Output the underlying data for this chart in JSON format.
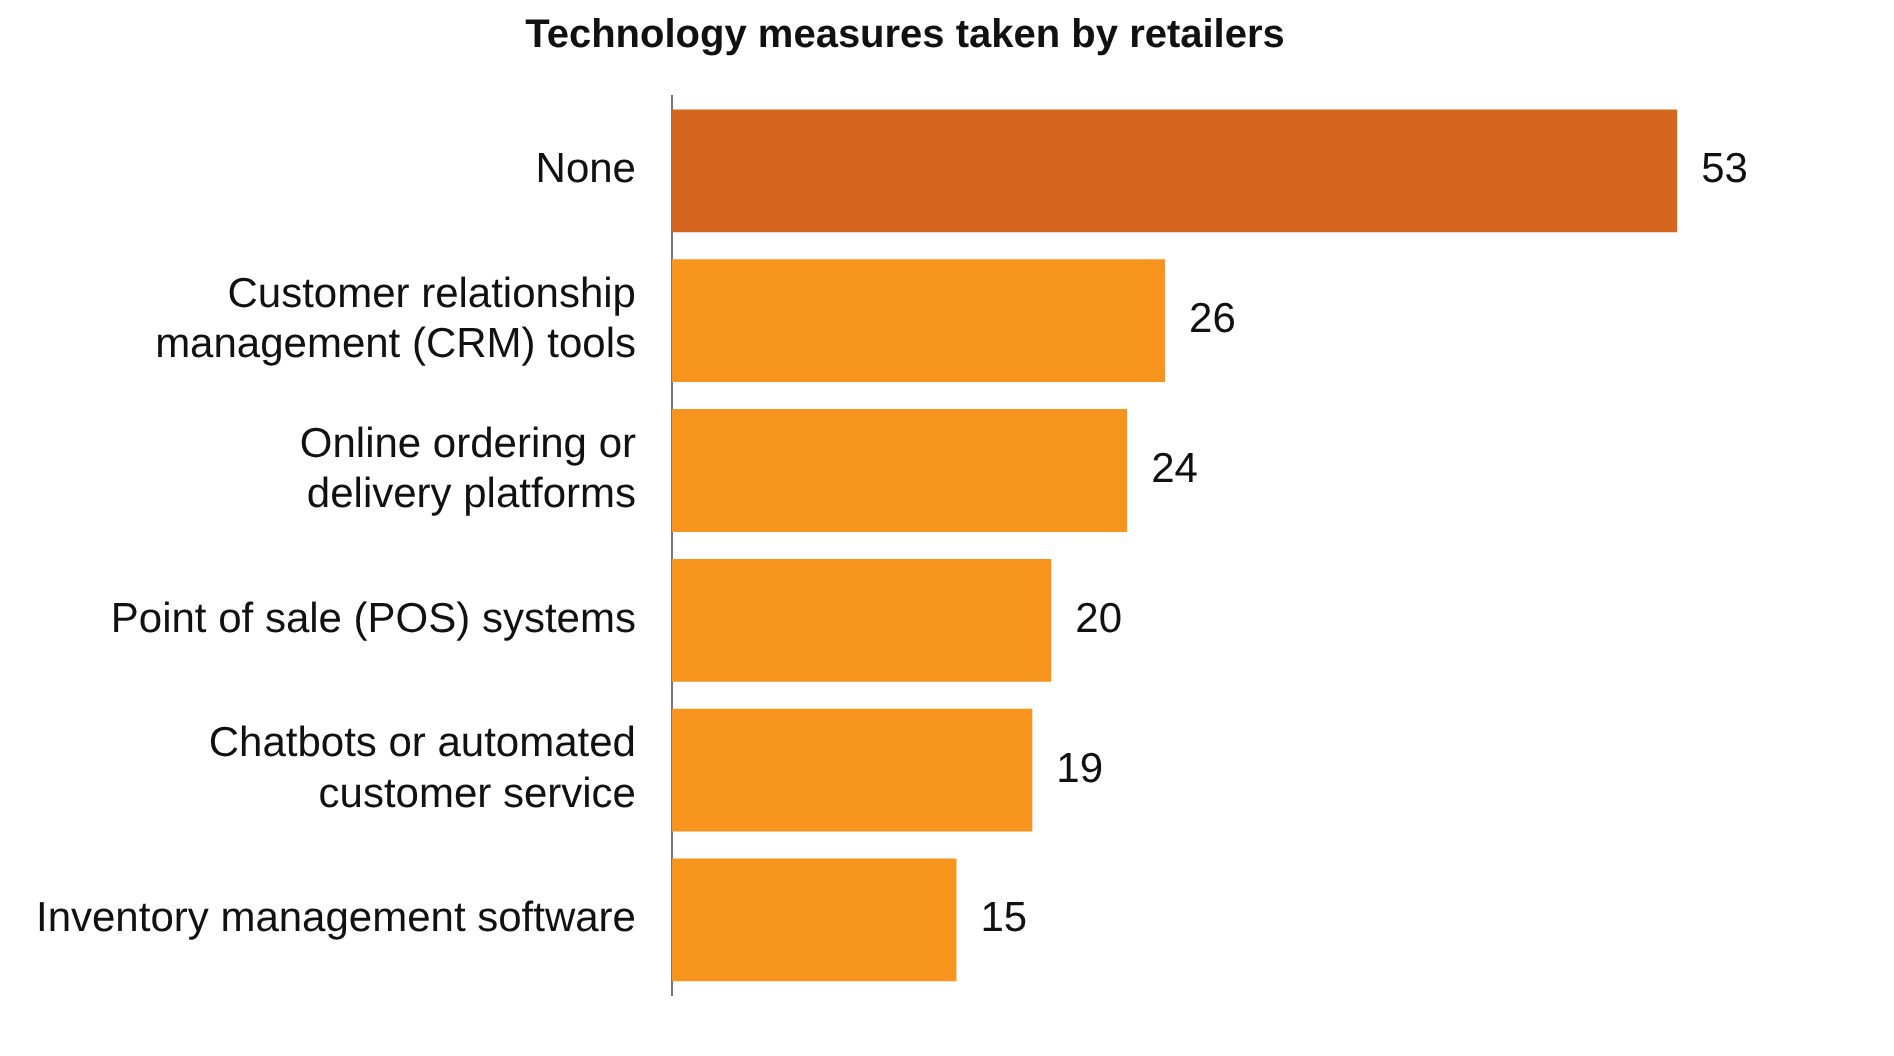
{
  "chart_data": {
    "type": "bar",
    "orientation": "horizontal",
    "title": "Technology measures taken by retailers",
    "categories": [
      "None",
      "Customer relationship management (CRM) tools",
      "Online ordering or delivery platforms",
      "Point of sale (POS) systems",
      "Chatbots or automated customer service",
      "Inventory management software"
    ],
    "values": [
      53,
      26,
      24,
      20,
      19,
      15
    ],
    "colors": [
      "#d5661f",
      "#f7941d",
      "#f7941d",
      "#f7941d",
      "#f7941d",
      "#f7941d"
    ],
    "data_labels": true,
    "grid": false,
    "legend": false
  }
}
